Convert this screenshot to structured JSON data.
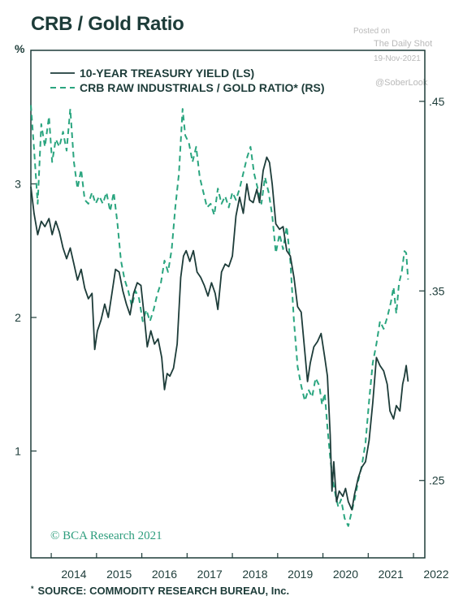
{
  "header": {
    "title": "CRB / Gold Ratio",
    "watermark": [
      "Posted on",
      "The Daily Shot",
      "19-Nov-2021",
      "@SoberLook"
    ],
    "left_unit": "%"
  },
  "footnote": {
    "marker": "*",
    "text": "SOURCE: COMMODITY RESEARCH BUREAU, Inc."
  },
  "credit": "© BCA Research 2021",
  "colors": {
    "yield": "#1d3c39",
    "ratio": "#2aa57f",
    "frame": "#1d3c39"
  },
  "chart_data": {
    "type": "line",
    "title": "CRB / Gold Ratio",
    "x_ticks": [
      "2014",
      "2015",
      "2016",
      "2017",
      "2018",
      "2019",
      "2020",
      "2021",
      "2022"
    ],
    "xlim": [
      2013.55,
      2022.25
    ],
    "left_axis": {
      "ticks": [
        "1",
        "2",
        "3"
      ],
      "values": [
        1,
        2,
        3
      ],
      "ylim": [
        0.2,
        4.0
      ]
    },
    "right_axis": {
      "ticks": [
        ".25",
        ".35",
        ".45"
      ],
      "values": [
        0.25,
        0.35,
        0.45
      ],
      "ylim": [
        0.2092,
        0.4769
      ]
    },
    "series": [
      {
        "name": "10-YEAR TREASURY YIELD (LS)",
        "axis": "left",
        "style": "solid",
        "points": [
          [
            2013.55,
            2.98
          ],
          [
            2013.62,
            2.78
          ],
          [
            2013.7,
            2.62
          ],
          [
            2013.78,
            2.72
          ],
          [
            2013.86,
            2.68
          ],
          [
            2013.95,
            2.74
          ],
          [
            2014.02,
            2.62
          ],
          [
            2014.1,
            2.72
          ],
          [
            2014.18,
            2.64
          ],
          [
            2014.26,
            2.52
          ],
          [
            2014.34,
            2.44
          ],
          [
            2014.42,
            2.52
          ],
          [
            2014.5,
            2.4
          ],
          [
            2014.58,
            2.28
          ],
          [
            2014.66,
            2.36
          ],
          [
            2014.74,
            2.22
          ],
          [
            2014.82,
            2.14
          ],
          [
            2014.9,
            2.18
          ],
          [
            2014.96,
            1.76
          ],
          [
            2015.02,
            1.9
          ],
          [
            2015.1,
            1.98
          ],
          [
            2015.18,
            2.1
          ],
          [
            2015.26,
            2.0
          ],
          [
            2015.34,
            2.18
          ],
          [
            2015.42,
            2.36
          ],
          [
            2015.5,
            2.34
          ],
          [
            2015.58,
            2.2
          ],
          [
            2015.66,
            2.1
          ],
          [
            2015.74,
            2.02
          ],
          [
            2015.82,
            2.18
          ],
          [
            2015.9,
            2.26
          ],
          [
            2015.98,
            2.24
          ],
          [
            2016.05,
            2.02
          ],
          [
            2016.12,
            1.78
          ],
          [
            2016.2,
            1.9
          ],
          [
            2016.28,
            1.8
          ],
          [
            2016.36,
            1.84
          ],
          [
            2016.44,
            1.7
          ],
          [
            2016.5,
            1.46
          ],
          [
            2016.56,
            1.58
          ],
          [
            2016.62,
            1.56
          ],
          [
            2016.7,
            1.62
          ],
          [
            2016.78,
            1.8
          ],
          [
            2016.86,
            2.3
          ],
          [
            2016.92,
            2.46
          ],
          [
            2016.98,
            2.5
          ],
          [
            2017.06,
            2.42
          ],
          [
            2017.14,
            2.5
          ],
          [
            2017.22,
            2.34
          ],
          [
            2017.3,
            2.3
          ],
          [
            2017.38,
            2.24
          ],
          [
            2017.46,
            2.16
          ],
          [
            2017.54,
            2.26
          ],
          [
            2017.62,
            2.18
          ],
          [
            2017.68,
            2.06
          ],
          [
            2017.76,
            2.34
          ],
          [
            2017.84,
            2.4
          ],
          [
            2017.92,
            2.38
          ],
          [
            2018.0,
            2.46
          ],
          [
            2018.08,
            2.76
          ],
          [
            2018.16,
            2.9
          ],
          [
            2018.24,
            2.78
          ],
          [
            2018.32,
            3.0
          ],
          [
            2018.38,
            2.88
          ],
          [
            2018.46,
            2.86
          ],
          [
            2018.54,
            2.96
          ],
          [
            2018.6,
            2.86
          ],
          [
            2018.68,
            3.1
          ],
          [
            2018.76,
            3.2
          ],
          [
            2018.82,
            3.16
          ],
          [
            2018.88,
            3.0
          ],
          [
            2018.96,
            2.7
          ],
          [
            2019.04,
            2.66
          ],
          [
            2019.12,
            2.68
          ],
          [
            2019.2,
            2.5
          ],
          [
            2019.28,
            2.46
          ],
          [
            2019.36,
            2.3
          ],
          [
            2019.44,
            2.08
          ],
          [
            2019.52,
            2.04
          ],
          [
            2019.6,
            1.74
          ],
          [
            2019.66,
            1.52
          ],
          [
            2019.72,
            1.66
          ],
          [
            2019.8,
            1.78
          ],
          [
            2019.88,
            1.82
          ],
          [
            2019.96,
            1.88
          ],
          [
            2020.04,
            1.7
          ],
          [
            2020.1,
            1.56
          ],
          [
            2020.16,
            1.12
          ],
          [
            2020.2,
            0.7
          ],
          [
            2020.24,
            0.92
          ],
          [
            2020.3,
            0.62
          ],
          [
            2020.36,
            0.7
          ],
          [
            2020.44,
            0.66
          ],
          [
            2020.5,
            0.72
          ],
          [
            2020.56,
            0.62
          ],
          [
            2020.64,
            0.56
          ],
          [
            2020.7,
            0.68
          ],
          [
            2020.78,
            0.8
          ],
          [
            2020.86,
            0.88
          ],
          [
            2020.94,
            0.92
          ],
          [
            2021.02,
            1.08
          ],
          [
            2021.1,
            1.36
          ],
          [
            2021.18,
            1.7
          ],
          [
            2021.26,
            1.64
          ],
          [
            2021.34,
            1.6
          ],
          [
            2021.42,
            1.5
          ],
          [
            2021.48,
            1.3
          ],
          [
            2021.56,
            1.24
          ],
          [
            2021.62,
            1.34
          ],
          [
            2021.7,
            1.3
          ],
          [
            2021.76,
            1.5
          ],
          [
            2021.8,
            1.56
          ],
          [
            2021.84,
            1.64
          ],
          [
            2021.88,
            1.52
          ]
        ]
      },
      {
        "name": "CRB RAW INDUSTRIALS / GOLD RATIO* (RS)",
        "axis": "right",
        "style": "dashed",
        "points": [
          [
            2013.55,
            0.448
          ],
          [
            2013.62,
            0.425
          ],
          [
            2013.7,
            0.396
          ],
          [
            2013.78,
            0.438
          ],
          [
            2013.86,
            0.426
          ],
          [
            2013.95,
            0.442
          ],
          [
            2014.02,
            0.418
          ],
          [
            2014.1,
            0.43
          ],
          [
            2014.18,
            0.426
          ],
          [
            2014.26,
            0.434
          ],
          [
            2014.34,
            0.424
          ],
          [
            2014.42,
            0.446
          ],
          [
            2014.5,
            0.418
          ],
          [
            2014.58,
            0.404
          ],
          [
            2014.66,
            0.414
          ],
          [
            2014.74,
            0.398
          ],
          [
            2014.82,
            0.396
          ],
          [
            2014.9,
            0.402
          ],
          [
            2014.98,
            0.396
          ],
          [
            2015.06,
            0.4
          ],
          [
            2015.14,
            0.396
          ],
          [
            2015.22,
            0.402
          ],
          [
            2015.3,
            0.392
          ],
          [
            2015.38,
            0.402
          ],
          [
            2015.46,
            0.386
          ],
          [
            2015.54,
            0.366
          ],
          [
            2015.62,
            0.356
          ],
          [
            2015.7,
            0.35
          ],
          [
            2015.78,
            0.342
          ],
          [
            2015.86,
            0.35
          ],
          [
            2015.94,
            0.346
          ],
          [
            2016.02,
            0.334
          ],
          [
            2016.1,
            0.34
          ],
          [
            2016.18,
            0.334
          ],
          [
            2016.26,
            0.34
          ],
          [
            2016.34,
            0.348
          ],
          [
            2016.42,
            0.354
          ],
          [
            2016.5,
            0.366
          ],
          [
            2016.58,
            0.36
          ],
          [
            2016.66,
            0.372
          ],
          [
            2016.74,
            0.394
          ],
          [
            2016.82,
            0.412
          ],
          [
            2016.9,
            0.446
          ],
          [
            2016.96,
            0.432
          ],
          [
            2017.04,
            0.428
          ],
          [
            2017.12,
            0.418
          ],
          [
            2017.2,
            0.426
          ],
          [
            2017.28,
            0.41
          ],
          [
            2017.36,
            0.402
          ],
          [
            2017.44,
            0.394
          ],
          [
            2017.52,
            0.396
          ],
          [
            2017.6,
            0.39
          ],
          [
            2017.68,
            0.404
          ],
          [
            2017.76,
            0.396
          ],
          [
            2017.84,
            0.4
          ],
          [
            2017.92,
            0.394
          ],
          [
            2018.0,
            0.402
          ],
          [
            2018.08,
            0.398
          ],
          [
            2018.16,
            0.404
          ],
          [
            2018.24,
            0.412
          ],
          [
            2018.32,
            0.42
          ],
          [
            2018.4,
            0.426
          ],
          [
            2018.48,
            0.412
          ],
          [
            2018.56,
            0.404
          ],
          [
            2018.64,
            0.396
          ],
          [
            2018.72,
            0.41
          ],
          [
            2018.8,
            0.402
          ],
          [
            2018.88,
            0.39
          ],
          [
            2018.96,
            0.37
          ],
          [
            2019.04,
            0.38
          ],
          [
            2019.12,
            0.372
          ],
          [
            2019.2,
            0.384
          ],
          [
            2019.28,
            0.366
          ],
          [
            2019.36,
            0.334
          ],
          [
            2019.44,
            0.31
          ],
          [
            2019.52,
            0.3
          ],
          [
            2019.6,
            0.292
          ],
          [
            2019.68,
            0.298
          ],
          [
            2019.76,
            0.294
          ],
          [
            2019.84,
            0.304
          ],
          [
            2019.92,
            0.3
          ],
          [
            2019.98,
            0.29
          ],
          [
            2020.04,
            0.296
          ],
          [
            2020.1,
            0.278
          ],
          [
            2020.16,
            0.262
          ],
          [
            2020.22,
            0.25
          ],
          [
            2020.28,
            0.242
          ],
          [
            2020.34,
            0.236
          ],
          [
            2020.4,
            0.24
          ],
          [
            2020.48,
            0.23
          ],
          [
            2020.56,
            0.226
          ],
          [
            2020.62,
            0.232
          ],
          [
            2020.7,
            0.24
          ],
          [
            2020.78,
            0.25
          ],
          [
            2020.86,
            0.258
          ],
          [
            2020.94,
            0.27
          ],
          [
            2021.02,
            0.292
          ],
          [
            2021.1,
            0.312
          ],
          [
            2021.18,
            0.322
          ],
          [
            2021.26,
            0.334
          ],
          [
            2021.34,
            0.33
          ],
          [
            2021.42,
            0.336
          ],
          [
            2021.5,
            0.344
          ],
          [
            2021.56,
            0.352
          ],
          [
            2021.62,
            0.338
          ],
          [
            2021.68,
            0.354
          ],
          [
            2021.74,
            0.36
          ],
          [
            2021.8,
            0.371
          ],
          [
            2021.84,
            0.37
          ],
          [
            2021.88,
            0.356
          ]
        ]
      }
    ]
  }
}
